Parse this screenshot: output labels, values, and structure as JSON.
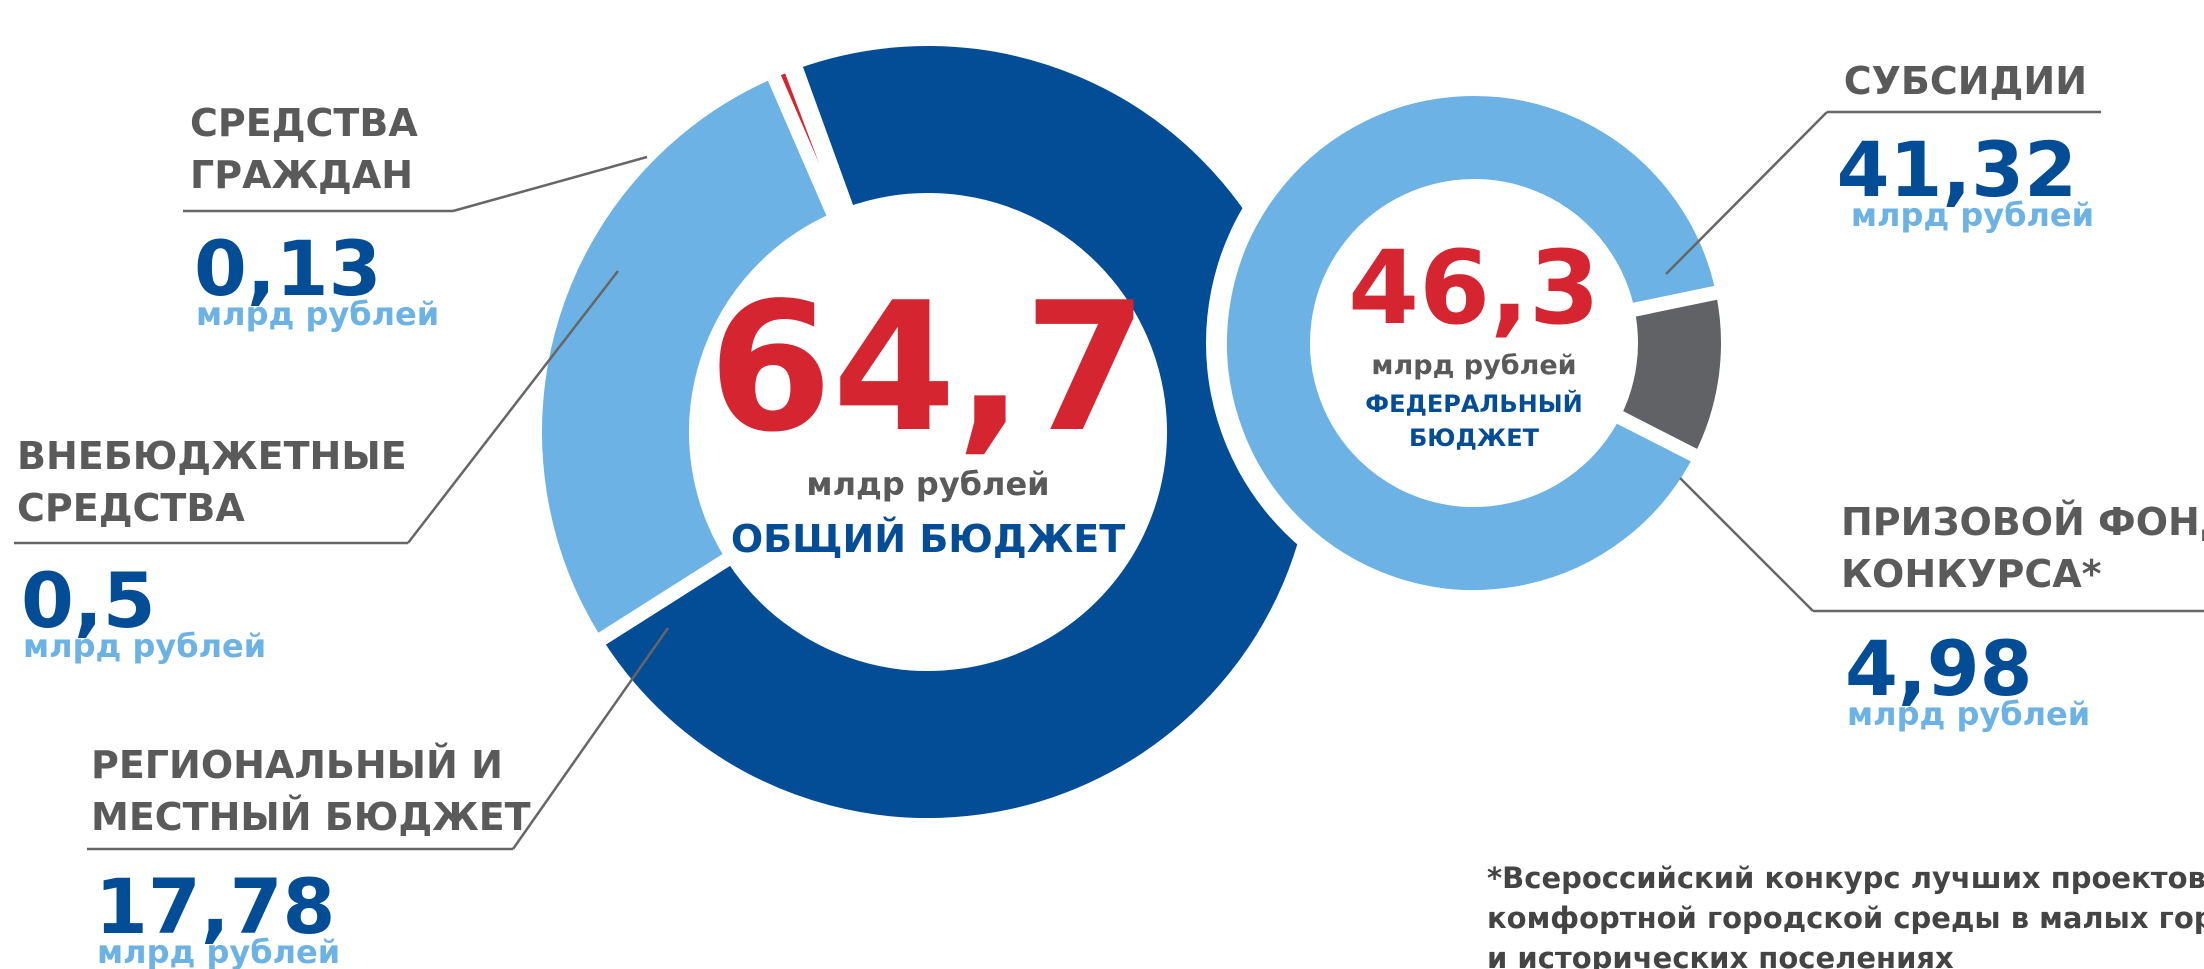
{
  "chart_data": [
    {
      "type": "pie",
      "categories": [
        [
          "СРЕДСТВА",
          "ГРАЖДАН"
        ],
        [
          "ВНЕБЮДЖЕТНЫЕ",
          "СРЕДСТВА"
        ],
        [
          "РЕГИОНАЛЬНЫЙ И",
          "МЕСТНЫЙ БЮДЖЕТ"
        ]
      ],
      "values": [
        0.13,
        0.5,
        17.78
      ],
      "value_labels": [
        "0,13",
        "0,5",
        "17,78"
      ],
      "colors": [
        "#606266",
        "#d42531",
        "#6cb2e4"
      ],
      "unit": "млрд рублей",
      "total": 64.7,
      "total_label": "64,7",
      "total_unit": "млдр рублей",
      "total_caption": [
        "ОБЩИЙ БЮДЖЕТ"
      ]
    },
    {
      "type": "pie",
      "categories": [
        [
          "СУБСИДИИ"
        ],
        [
          "ПРИЗОВОЙ ФОНД",
          "КОНКУРСА*"
        ]
      ],
      "values": [
        41.32,
        4.98
      ],
      "value_labels": [
        "41,32",
        "4,98"
      ],
      "colors": [
        "#6cb2e4",
        "#606266"
      ],
      "unit": "млрд рублей",
      "color": "#034c96",
      "total": 46.3,
      "total_label": "46,3",
      "total_unit": "млрд рублей",
      "total_caption": [
        "ФЕДЕРАЛЬНЫЙ",
        "БЮДЖЕТ"
      ]
    }
  ],
  "footnote": [
    "*Всероссийский конкурс лучших проектов создания",
    "комфортной городской среды в малых городах",
    "и исторических поселениях"
  ]
}
